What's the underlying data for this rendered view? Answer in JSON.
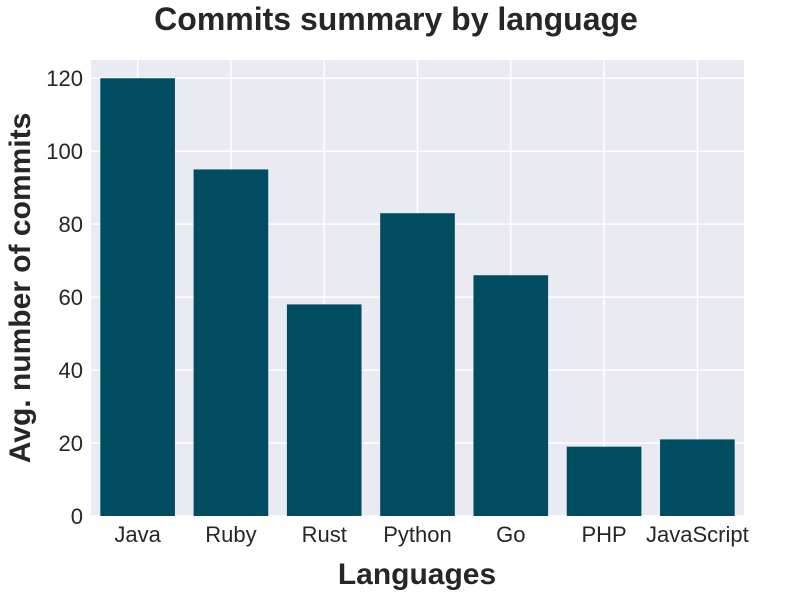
{
  "chart_data": {
    "type": "bar",
    "title": "Commits summary by language",
    "xlabel": "Languages",
    "ylabel": "Avg. number of commits",
    "categories": [
      "Java",
      "Ruby",
      "Rust",
      "Python",
      "Go",
      "PHP",
      "JavaScript"
    ],
    "values": [
      120,
      95,
      58,
      83,
      66,
      19,
      21
    ],
    "ylim": [
      0,
      125
    ],
    "yticks": [
      0,
      20,
      40,
      60,
      80,
      100,
      120
    ],
    "ytick_labels": [
      "0",
      "20",
      "40",
      "60",
      "80",
      "100",
      "120"
    ],
    "grid": true,
    "bar_color": "#004c60",
    "plot_background": "#eaeaf2"
  }
}
